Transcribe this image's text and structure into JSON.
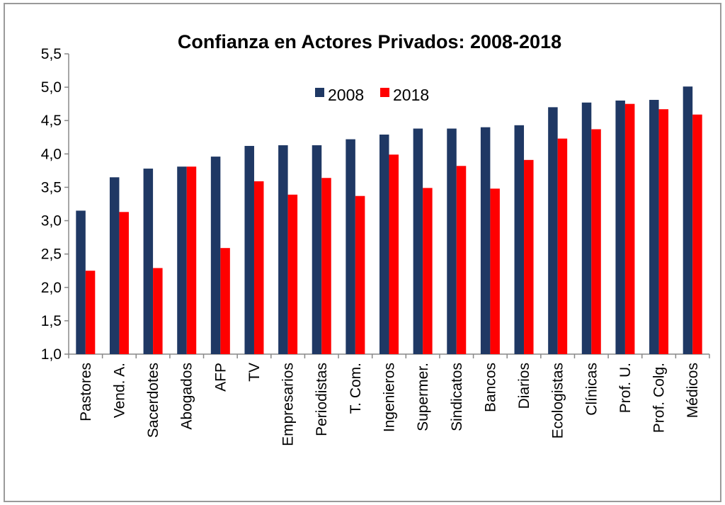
{
  "chart_data": {
    "type": "bar",
    "title": "Confianza en Actores Privados: 2008-2018",
    "categories": [
      "Pastores",
      "Vend. A.",
      "Sacerdotes",
      "Abogados",
      "AFP",
      "TV",
      "Empresarios",
      "Periodistas",
      "T. Com.",
      "Ingenieros",
      "Supermer.",
      "Sindicatos",
      "Bancos",
      "Diarios",
      "Ecologistas",
      "Clínicas",
      "Prof. U.",
      "Prof. Colg.",
      "Médicos"
    ],
    "series": [
      {
        "name": "2008",
        "color": "#1f3864",
        "values": [
          3.15,
          3.65,
          3.78,
          3.81,
          3.96,
          4.12,
          4.13,
          4.13,
          4.22,
          4.29,
          4.38,
          4.38,
          4.4,
          4.43,
          4.7,
          4.77,
          4.8,
          4.81,
          5.01
        ]
      },
      {
        "name": "2018",
        "color": "#ff0000",
        "values": [
          2.25,
          3.13,
          2.29,
          3.81,
          2.59,
          3.59,
          3.39,
          3.64,
          3.37,
          3.99,
          3.49,
          3.82,
          3.48,
          3.91,
          4.23,
          4.37,
          4.75,
          4.67,
          4.59
        ]
      }
    ],
    "ylim": [
      1,
      5.5
    ],
    "yticks": [
      {
        "value": 1,
        "label": "1,0"
      },
      {
        "value": 1.5,
        "label": "1,5"
      },
      {
        "value": 2,
        "label": "2,0"
      },
      {
        "value": 2.5,
        "label": "2,5"
      },
      {
        "value": 3,
        "label": "3,0"
      },
      {
        "value": 3.5,
        "label": "3,5"
      },
      {
        "value": 4,
        "label": "4,0"
      },
      {
        "value": 4.5,
        "label": "4,5"
      },
      {
        "value": 5,
        "label": "5,0"
      },
      {
        "value": 5.5,
        "label": "5,5"
      }
    ],
    "legend": "top"
  }
}
